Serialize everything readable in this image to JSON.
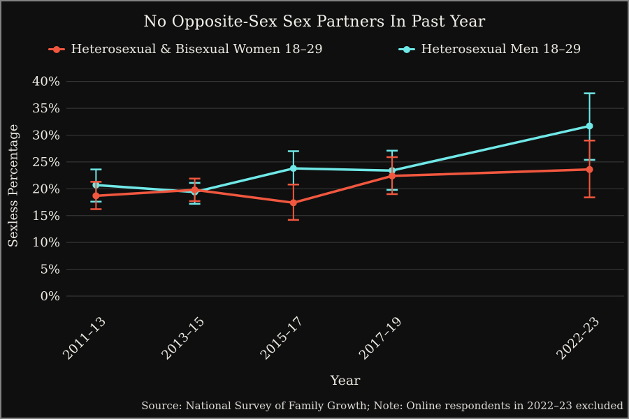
{
  "title": "No Opposite-Sex Sex Partners In Past Year",
  "axes": {
    "y_label": "Sexless Percentage",
    "x_label": "Year"
  },
  "source_note": "Source: National Survey of Family Growth; Note: Online respondents in 2022–23 excluded",
  "legend": {
    "items": [
      {
        "label": "Heterosexual & Bisexual Women 18–29",
        "color": "#f1573f",
        "marker": "dot-line"
      },
      {
        "label": "Heterosexual Men 18–29",
        "color": "#6fe8e7",
        "marker": "dot-line"
      }
    ]
  },
  "theme": {
    "background": "#0f0f0f",
    "border": "#828282",
    "text": "#ece9e3",
    "grid": "#3c3c3c",
    "women_color": "#f1573f",
    "men_color": "#6fe8e7"
  },
  "chart_data": {
    "type": "line",
    "title": "No Opposite-Sex Sex Partners In Past Year",
    "xlabel": "Year",
    "ylabel": "Sexless Percentage",
    "categories": [
      "2011–13",
      "2013–15",
      "2015–17",
      "2017–19",
      "2022–23"
    ],
    "x_numeric": [
      2012,
      2014,
      2016,
      2018,
      2022
    ],
    "xlim": [
      2011.4,
      2022.7
    ],
    "ylim": [
      0,
      41
    ],
    "yticks": [
      0,
      5,
      10,
      15,
      20,
      25,
      30,
      35,
      40
    ],
    "ytick_suffix": "%",
    "grid": "horizontal",
    "legend_position": "top",
    "error_bars": true,
    "series": [
      {
        "name": "Heterosexual & Bisexual Women 18–29",
        "color": "#f1573f",
        "values": [
          18.7,
          19.8,
          17.4,
          22.4,
          23.6
        ],
        "err_low": [
          16.2,
          17.7,
          14.2,
          19.0,
          18.4
        ],
        "err_high": [
          21.3,
          21.9,
          20.8,
          25.9,
          29.0
        ]
      },
      {
        "name": "Heterosexual Men 18–29",
        "color": "#6fe8e7",
        "values": [
          20.7,
          19.4,
          23.8,
          23.4,
          31.7
        ],
        "err_low": [
          17.6,
          17.2,
          20.8,
          19.8,
          25.4
        ],
        "err_high": [
          23.6,
          21.1,
          27.0,
          27.1,
          37.8
        ]
      }
    ]
  }
}
